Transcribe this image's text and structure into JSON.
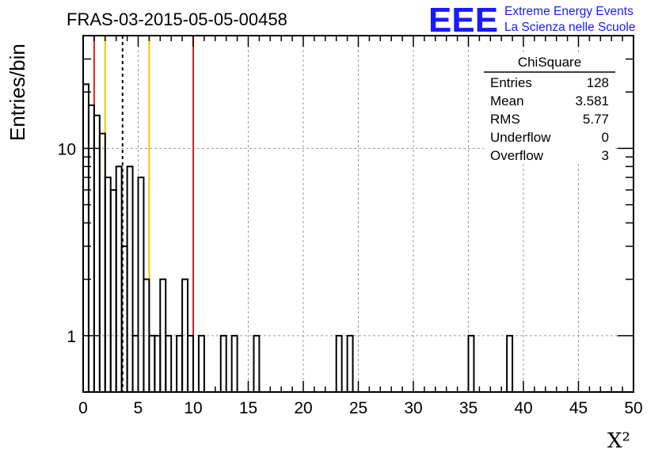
{
  "header": {
    "title": "FRAS-03-2015-05-05-00458",
    "logo": "EEE",
    "logo_line1": "Extreme Energy Events",
    "logo_line2": "La Scienza nelle Scuole"
  },
  "stats": {
    "name": "ChiSquare",
    "rows": [
      {
        "label": "Entries",
        "value": "128"
      },
      {
        "label": "Mean",
        "value": "3.581"
      },
      {
        "label": "RMS",
        "value": "5.77"
      },
      {
        "label": "Underflow",
        "value": "0"
      },
      {
        "label": "Overflow",
        "value": "3"
      }
    ]
  },
  "chart_data": {
    "type": "bar",
    "style": "step-histogram",
    "title": "FRAS-03-2015-05-05-00458",
    "xlabel": "X²",
    "ylabel": "Entries/bin",
    "xlim": [
      0,
      50
    ],
    "ylim": [
      0.5,
      40
    ],
    "ylog": true,
    "grid": true,
    "bin_width": 0.5,
    "x_ticks": [
      "0",
      "5",
      "10",
      "15",
      "20",
      "25",
      "30",
      "35",
      "40",
      "45",
      "50"
    ],
    "y_ticks": [
      "1",
      "10"
    ],
    "bins": [
      {
        "x": 0.0,
        "y": 22
      },
      {
        "x": 0.5,
        "y": 17
      },
      {
        "x": 1.0,
        "y": 15
      },
      {
        "x": 1.5,
        "y": 12
      },
      {
        "x": 2.0,
        "y": 7
      },
      {
        "x": 2.5,
        "y": 6
      },
      {
        "x": 3.0,
        "y": 8
      },
      {
        "x": 3.5,
        "y": 3
      },
      {
        "x": 4.0,
        "y": 8
      },
      {
        "x": 4.5,
        "y": 1
      },
      {
        "x": 5.0,
        "y": 7
      },
      {
        "x": 5.5,
        "y": 2
      },
      {
        "x": 6.0,
        "y": 1
      },
      {
        "x": 6.5,
        "y": 1
      },
      {
        "x": 7.0,
        "y": 2
      },
      {
        "x": 7.5,
        "y": 1
      },
      {
        "x": 8.0,
        "y": 0
      },
      {
        "x": 8.5,
        "y": 1
      },
      {
        "x": 9.0,
        "y": 2
      },
      {
        "x": 9.5,
        "y": 1
      },
      {
        "x": 10.5,
        "y": 1
      },
      {
        "x": 12.5,
        "y": 1
      },
      {
        "x": 13.0,
        "y": 0
      },
      {
        "x": 13.5,
        "y": 1
      },
      {
        "x": 15.5,
        "y": 1
      },
      {
        "x": 23.0,
        "y": 1
      },
      {
        "x": 24.0,
        "y": 1
      },
      {
        "x": 35.0,
        "y": 1
      },
      {
        "x": 38.5,
        "y": 1
      }
    ],
    "vertical_lines": [
      {
        "x": 1.0,
        "color": "#e02020",
        "dash": "solid"
      },
      {
        "x": 2.0,
        "color": "#f5c400",
        "dash": "solid"
      },
      {
        "x": 3.581,
        "color": "#000000",
        "dash": "dashed"
      },
      {
        "x": 6.0,
        "color": "#f5c400",
        "dash": "solid"
      },
      {
        "x": 10.0,
        "color": "#e02020",
        "dash": "solid"
      }
    ]
  }
}
